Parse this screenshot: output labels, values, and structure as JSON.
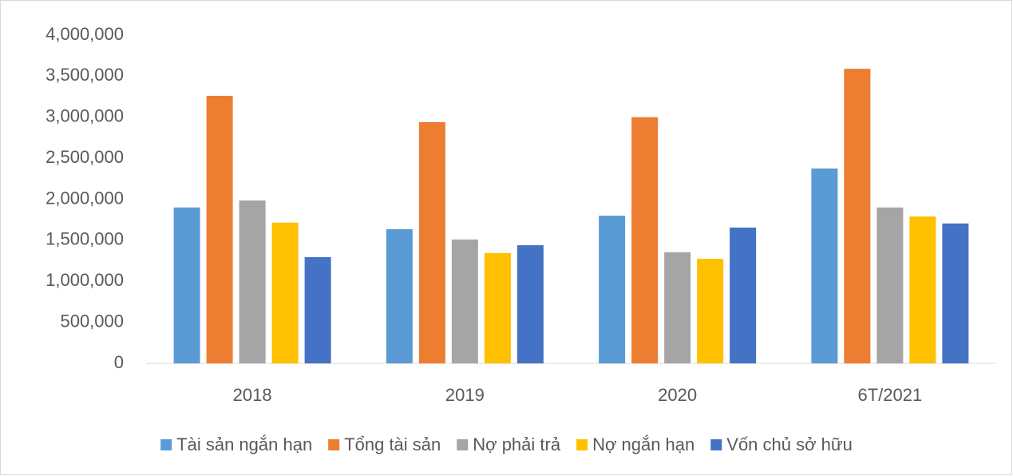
{
  "chart_data": {
    "type": "bar",
    "categories": [
      "2018",
      "2019",
      "2020",
      "6T/2021"
    ],
    "series": [
      {
        "name": "Tài sản ngắn hạn",
        "color": "#5b9bd5",
        "values": [
          1900000,
          1635000,
          1800000,
          2375000
        ]
      },
      {
        "name": "Tổng tài sản",
        "color": "#ed7d31",
        "values": [
          3260000,
          2940000,
          3000000,
          3590000
        ]
      },
      {
        "name": "Nợ phải trả",
        "color": "#a5a5a5",
        "values": [
          1985000,
          1510000,
          1355000,
          1900000
        ]
      },
      {
        "name": "Nợ ngắn hạn",
        "color": "#ffc000",
        "values": [
          1715000,
          1345000,
          1275000,
          1790000
        ]
      },
      {
        "name": "Vốn chủ sở hữu",
        "color": "#4472c4",
        "values": [
          1295000,
          1440000,
          1655000,
          1705000
        ]
      }
    ],
    "ylim": [
      0,
      4000000
    ],
    "yticks": [
      0,
      {
        "value": 500000,
        "label": "500,000"
      },
      {
        "value": 1000000,
        "label": "1,000,000"
      },
      {
        "value": 1500000,
        "label": "1,500,000"
      },
      {
        "value": 2000000,
        "label": "2,000,000"
      },
      {
        "value": 2500000,
        "label": "2,500,000"
      },
      {
        "value": 3000000,
        "label": "3,000,000"
      },
      {
        "value": 3500000,
        "label": "3,500,000"
      },
      {
        "value": 4000000,
        "label": "4,000,000"
      }
    ],
    "grid": false,
    "legend": "bottom"
  }
}
